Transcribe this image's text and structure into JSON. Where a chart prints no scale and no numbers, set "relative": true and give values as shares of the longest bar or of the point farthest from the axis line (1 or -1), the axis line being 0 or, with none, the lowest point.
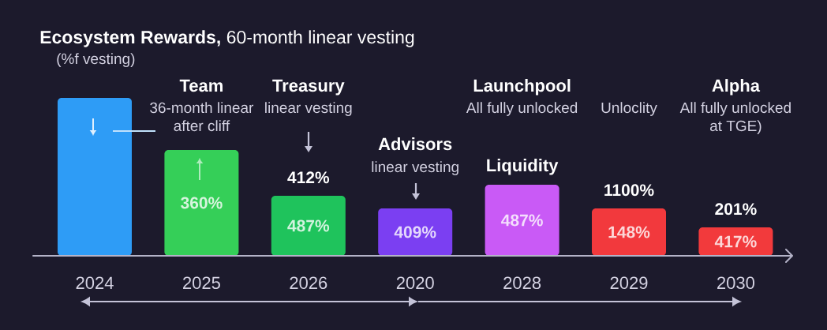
{
  "chart_data": {
    "type": "bar",
    "title": "**Ecosystem Rewards,** 60-month linear vesting",
    "subtitle": "(%f vesting)",
    "categories": [
      "2024",
      "2025",
      "2026",
      "2020",
      "2028",
      "2029",
      "2030"
    ],
    "values": [
      1,
      0.67,
      0.38,
      0.3,
      0.45,
      0.3,
      0.18
    ],
    "colors": [
      "#2e9cf6",
      "#35cf58",
      "#1fc35c",
      "#7b3ff2",
      "#c95af6",
      "#f2393d",
      "#f23a3c"
    ],
    "relative": true,
    "annotations": [
      "Team",
      "36-month linear after cliff",
      "Treasury",
      "linear vesting",
      "Advisors",
      "linear vesting",
      "Launchpool",
      "All fully unlocked",
      "Liquidity",
      "Unloclity",
      "Alpha",
      "All fully unlocked at TGE)",
      {
        "text": "412%",
        "x": "2026",
        "y": 0.38
      },
      {
        "text": "1100%",
        "x": "2029",
        "y": 0.3
      },
      {
        "text": "201%",
        "x": "2030",
        "y": 0.18
      },
      "360%",
      "487%",
      "409%",
      "487%",
      "148%",
      "417%"
    ]
  }
}
